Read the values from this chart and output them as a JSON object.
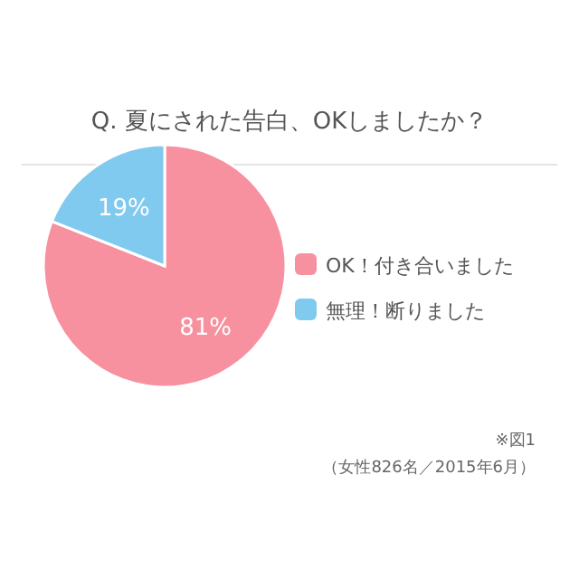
{
  "chart_data": {
    "type": "pie",
    "title": "Q. 夏にされた告白、OKしましたか？",
    "categories": [
      "OK！付き合いました",
      "無理！断りました"
    ],
    "values": [
      81,
      19
    ],
    "colors": [
      "#f7919f",
      "#80c9ef"
    ],
    "value_labels": [
      "81%",
      "19%"
    ],
    "legend": "right",
    "annotations": [
      "※図1",
      "（女性826名／2015年6月）"
    ]
  }
}
